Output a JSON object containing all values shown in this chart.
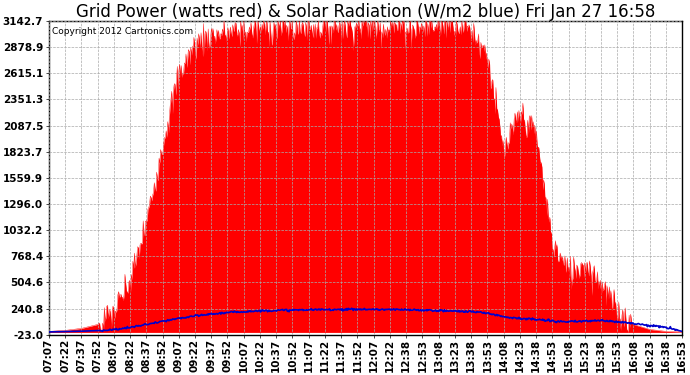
{
  "title": "Grid Power (watts red) & Solar Radiation (W/m2 blue) Fri Jan 27 16:58",
  "copyright": "Copyright 2012 Cartronics.com",
  "yticks": [
    3142.7,
    2878.9,
    2615.1,
    2351.3,
    2087.5,
    1823.7,
    1559.9,
    1296.0,
    1032.2,
    768.4,
    504.6,
    240.8,
    -23.0
  ],
  "ymin": -23.0,
  "ymax": 3142.7,
  "xtick_labels": [
    "07:07",
    "07:22",
    "07:37",
    "07:52",
    "08:07",
    "08:22",
    "08:37",
    "08:52",
    "09:07",
    "09:22",
    "09:37",
    "09:52",
    "10:07",
    "10:22",
    "10:37",
    "10:52",
    "11:07",
    "11:22",
    "11:37",
    "11:52",
    "12:07",
    "12:22",
    "12:38",
    "12:53",
    "13:08",
    "13:23",
    "13:38",
    "13:53",
    "14:08",
    "14:23",
    "14:38",
    "14:53",
    "15:08",
    "15:23",
    "15:38",
    "15:53",
    "16:08",
    "16:23",
    "16:38",
    "16:53"
  ],
  "red_data": [
    10,
    20,
    40,
    80,
    200,
    500,
    1100,
    1900,
    2600,
    2900,
    3000,
    3020,
    3040,
    3060,
    3070,
    3075,
    3080,
    3085,
    3090,
    3090,
    3088,
    3085,
    3080,
    3075,
    3100,
    3142,
    3050,
    2800,
    1800,
    2200,
    2000,
    900,
    600,
    700,
    500,
    200,
    80,
    30,
    10,
    5
  ],
  "blue_data": [
    5,
    8,
    12,
    18,
    28,
    50,
    80,
    110,
    140,
    165,
    185,
    200,
    210,
    218,
    222,
    225,
    228,
    230,
    232,
    233,
    232,
    230,
    228,
    225,
    220,
    215,
    210,
    195,
    160,
    140,
    130,
    115,
    105,
    115,
    120,
    110,
    90,
    70,
    50,
    10
  ],
  "bg_color": "#ffffff",
  "plot_bg_color": "#ffffff",
  "grid_color": "#aaaaaa",
  "red_color": "#ff0000",
  "blue_color": "#0000cc",
  "title_fontsize": 12,
  "tick_fontsize": 7.5,
  "figwidth": 6.9,
  "figheight": 3.75,
  "dpi": 100
}
